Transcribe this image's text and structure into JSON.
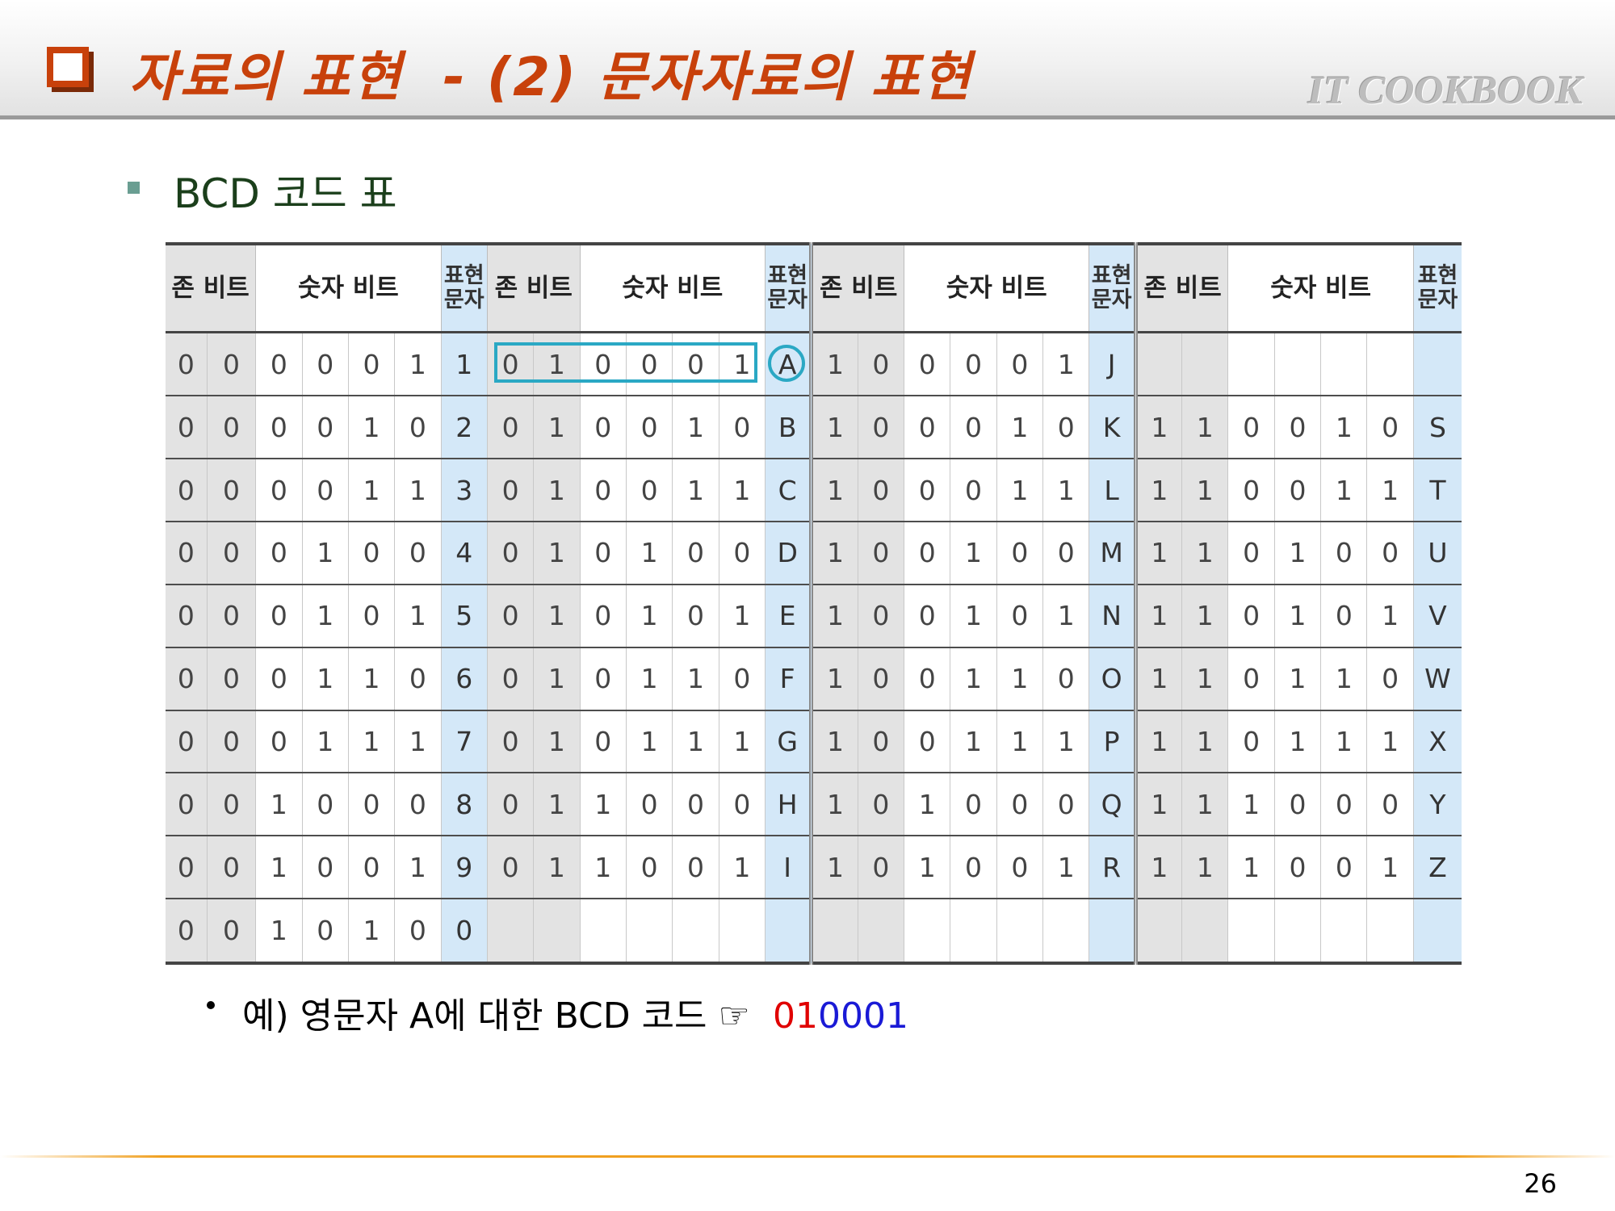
{
  "header": {
    "title": "자료의 표현  - (2) 문자자료의 표현",
    "brand": "IT COOKBOOK"
  },
  "subtitle": "BCD 코드 표",
  "table": {
    "headers": [
      "존 비트",
      "숫자 비트",
      "표현 문자",
      "존 비트",
      "숫자 비트",
      "표현 문자",
      "존 비트",
      "숫자 비트",
      "표현 문자",
      "존 비트",
      "숫자 비트",
      "표현 문자"
    ],
    "rows": [
      [
        "0",
        "0",
        "0",
        "0",
        "0",
        "1",
        "1",
        "0",
        "1",
        "0",
        "0",
        "0",
        "1",
        "A",
        "1",
        "0",
        "0",
        "0",
        "0",
        "1",
        "J",
        "",
        "",
        "",
        "",
        "",
        "",
        ""
      ],
      [
        "0",
        "0",
        "0",
        "0",
        "1",
        "0",
        "2",
        "0",
        "1",
        "0",
        "0",
        "1",
        "0",
        "B",
        "1",
        "0",
        "0",
        "0",
        "1",
        "0",
        "K",
        "1",
        "1",
        "0",
        "0",
        "1",
        "0",
        "S"
      ],
      [
        "0",
        "0",
        "0",
        "0",
        "1",
        "1",
        "3",
        "0",
        "1",
        "0",
        "0",
        "1",
        "1",
        "C",
        "1",
        "0",
        "0",
        "0",
        "1",
        "1",
        "L",
        "1",
        "1",
        "0",
        "0",
        "1",
        "1",
        "T"
      ],
      [
        "0",
        "0",
        "0",
        "1",
        "0",
        "0",
        "4",
        "0",
        "1",
        "0",
        "1",
        "0",
        "0",
        "D",
        "1",
        "0",
        "0",
        "1",
        "0",
        "0",
        "M",
        "1",
        "1",
        "0",
        "1",
        "0",
        "0",
        "U"
      ],
      [
        "0",
        "0",
        "0",
        "1",
        "0",
        "1",
        "5",
        "0",
        "1",
        "0",
        "1",
        "0",
        "1",
        "E",
        "1",
        "0",
        "0",
        "1",
        "0",
        "1",
        "N",
        "1",
        "1",
        "0",
        "1",
        "0",
        "1",
        "V"
      ],
      [
        "0",
        "0",
        "0",
        "1",
        "1",
        "0",
        "6",
        "0",
        "1",
        "0",
        "1",
        "1",
        "0",
        "F",
        "1",
        "0",
        "0",
        "1",
        "1",
        "0",
        "O",
        "1",
        "1",
        "0",
        "1",
        "1",
        "0",
        "W"
      ],
      [
        "0",
        "0",
        "0",
        "1",
        "1",
        "1",
        "7",
        "0",
        "1",
        "0",
        "1",
        "1",
        "1",
        "G",
        "1",
        "0",
        "0",
        "1",
        "1",
        "1",
        "P",
        "1",
        "1",
        "0",
        "1",
        "1",
        "1",
        "X"
      ],
      [
        "0",
        "0",
        "1",
        "0",
        "0",
        "0",
        "8",
        "0",
        "1",
        "1",
        "0",
        "0",
        "0",
        "H",
        "1",
        "0",
        "1",
        "0",
        "0",
        "0",
        "Q",
        "1",
        "1",
        "1",
        "0",
        "0",
        "0",
        "Y"
      ],
      [
        "0",
        "0",
        "1",
        "0",
        "0",
        "1",
        "9",
        "0",
        "1",
        "1",
        "0",
        "0",
        "1",
        "I",
        "1",
        "0",
        "1",
        "0",
        "0",
        "1",
        "R",
        "1",
        "1",
        "1",
        "0",
        "0",
        "1",
        "Z"
      ],
      [
        "0",
        "0",
        "1",
        "0",
        "1",
        "0",
        "0",
        "",
        "",
        "",
        "",
        "",
        "",
        "",
        "",
        "",
        "",
        "",
        "",
        "",
        "",
        "",
        "",
        "",
        "",
        "",
        "",
        ""
      ]
    ]
  },
  "note": {
    "text": "예) 영문자 A에 대한 BCD 코드 ☞",
    "zone_bits": "01",
    "digit_bits": "0001"
  },
  "page_number": "26",
  "colors": {
    "title": "#c8410b",
    "zone_column": "#e3e3e3",
    "char_column": "#d4e8f8",
    "highlight": "#2aa8c4",
    "zone_bits_text": "#e00000",
    "digit_bits_text": "#1a1ad6",
    "footer_line": "#f0a020"
  }
}
